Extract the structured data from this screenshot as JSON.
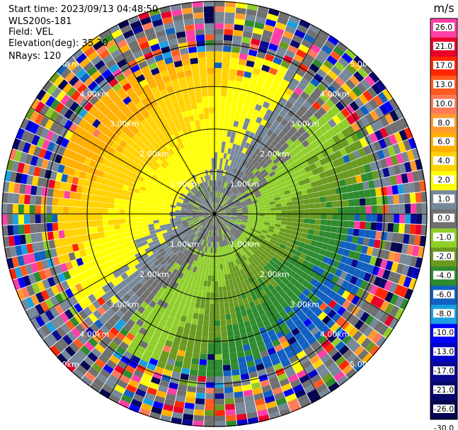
{
  "info": {
    "start_time": "Start time: 2023/09/13 04:48:50",
    "instrument": "WLS200s-181",
    "field": "Field: VEL",
    "elevation": "Elevation(deg): 35.30",
    "nrays": "NRays: 120"
  },
  "chart_data": {
    "type": "heatmap",
    "subtype": "polar-ppi",
    "field": "VEL",
    "nrays": 120,
    "range_rings_km": [
      1.0,
      2.0,
      3.0,
      4.0,
      5.0
    ],
    "range_labels": [
      "1.00km",
      "2.00km",
      "3.00km",
      "4.00km",
      "5.00km"
    ],
    "grid": true,
    "colorbar": {
      "unit": "m/s",
      "ticks": [
        "26.0",
        "21.0",
        "17.0",
        "13.0",
        "10.0",
        "8.0",
        "6.0",
        "4.0",
        "2.0",
        "1.0",
        "0.0",
        "-1.0",
        "-2.0",
        "-4.0",
        "-6.0",
        "-8.0",
        "-10.0",
        "-13.0",
        "-17.0",
        "-21.0",
        "-26.0",
        "-30.0"
      ],
      "colors": [
        "#ff3fa8",
        "#e8002a",
        "#ff2600",
        "#ff5a1e",
        "#ff7a5a",
        "#ff9b2e",
        "#ffb000",
        "#ffd200",
        "#ffff00",
        "#778899",
        "#707070",
        "#8fce2a",
        "#6a9a20",
        "#2e8b2e",
        "#1060c0",
        "#1aa0e0",
        "#0000ff",
        "#0000c8",
        "#0a0a90",
        "#06066a",
        "#050550"
      ]
    }
  }
}
